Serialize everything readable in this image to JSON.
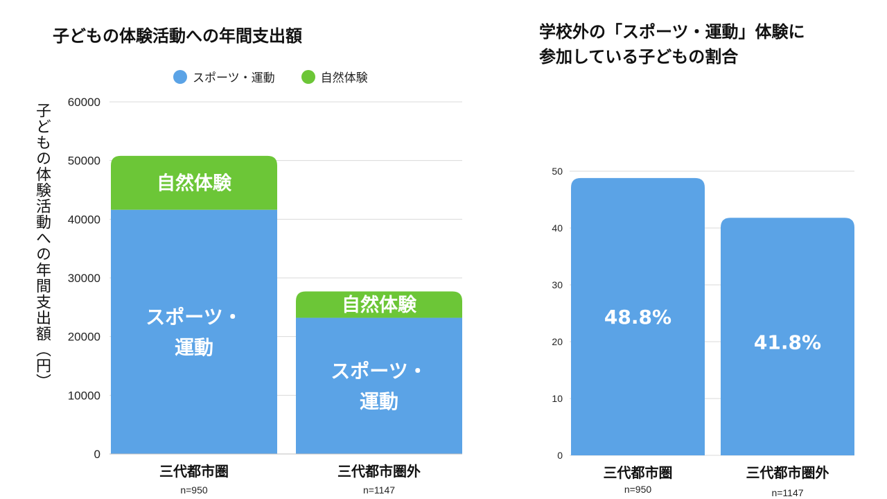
{
  "colors": {
    "sports": "#5ba3e6",
    "nature": "#6cc637",
    "grid": "#d9d9d9"
  },
  "chart_data": [
    {
      "type": "bar",
      "stacked": true,
      "title": "子どもの体験活動への年間支出額",
      "ylabel": "子どもの体験活動への年間支出額（円）",
      "xlabel": "",
      "ylim": [
        0,
        60000
      ],
      "yticks": [
        "0",
        "10000",
        "20000",
        "30000",
        "40000",
        "50000",
        "60000"
      ],
      "categories": [
        "三代都市圏",
        "三代都市圏外"
      ],
      "sample_sizes": [
        "n=950",
        "n=1147"
      ],
      "series": [
        {
          "name": "スポーツ・運動",
          "values": [
            41600,
            23200
          ],
          "label_lines": [
            "スポーツ・",
            "運動"
          ]
        },
        {
          "name": "自然体験",
          "values": [
            9200,
            4500
          ],
          "label_lines": [
            "自然体験"
          ]
        }
      ],
      "legend": "top-center",
      "grid": true
    },
    {
      "type": "bar",
      "title": "学校外の「スポーツ・運動」体験に参加している子どもの割合",
      "title_lines": [
        "学校外の「スポーツ・運動」体験に",
        "参加している子どもの割合"
      ],
      "xlabel": "",
      "ylabel": "",
      "ylim": [
        0,
        50
      ],
      "yticks": [
        "0",
        "10",
        "20",
        "30",
        "40",
        "50"
      ],
      "categories": [
        "三代都市圏",
        "三代都市圏外"
      ],
      "sample_sizes": [
        "n=950",
        "n=1147"
      ],
      "values": [
        48.8,
        41.8
      ],
      "value_labels": [
        "48.8%",
        "41.8%"
      ],
      "grid": true
    }
  ]
}
